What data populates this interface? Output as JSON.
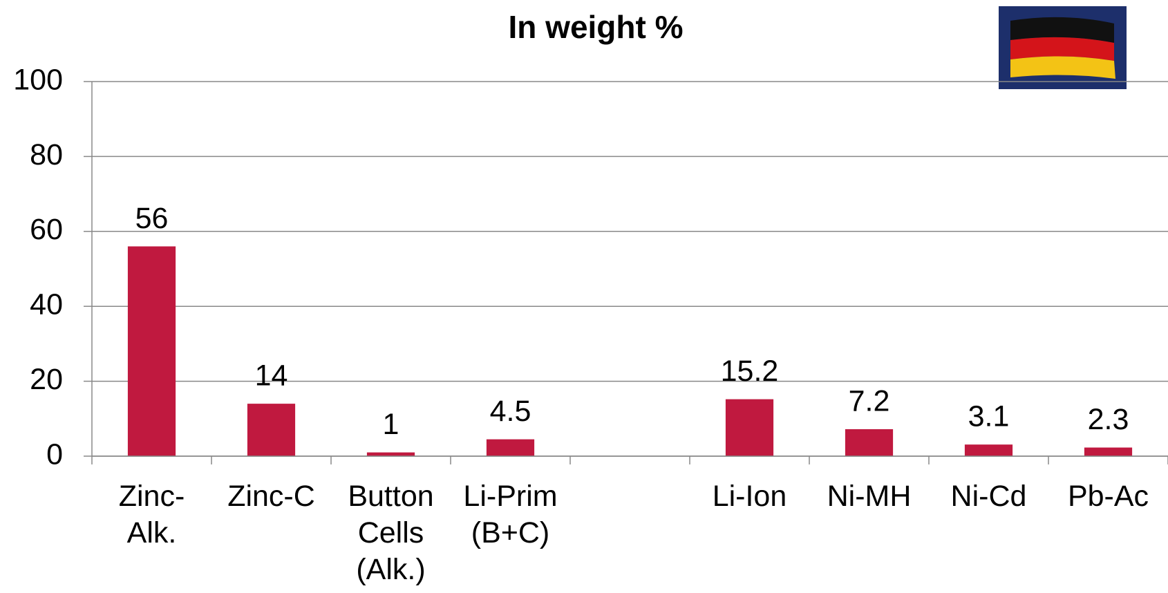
{
  "chart_data": {
    "type": "bar",
    "title": "In weight %",
    "categories": [
      "Zinc-\nAlk.",
      "Zinc-C",
      "Button\nCells\n(Alk.)",
      "Li-Prim\n(B+C)",
      null,
      "Li-Ion",
      "Ni-MH",
      "Ni-Cd",
      "Pb-Ac"
    ],
    "values": [
      56,
      14,
      1,
      4.5,
      null,
      15.2,
      7.2,
      3.1,
      2.3
    ],
    "color": "#c0193f",
    "ylim": [
      0,
      100
    ],
    "yticks": [
      0,
      20,
      40,
      60,
      80,
      100
    ],
    "grid": true
  }
}
